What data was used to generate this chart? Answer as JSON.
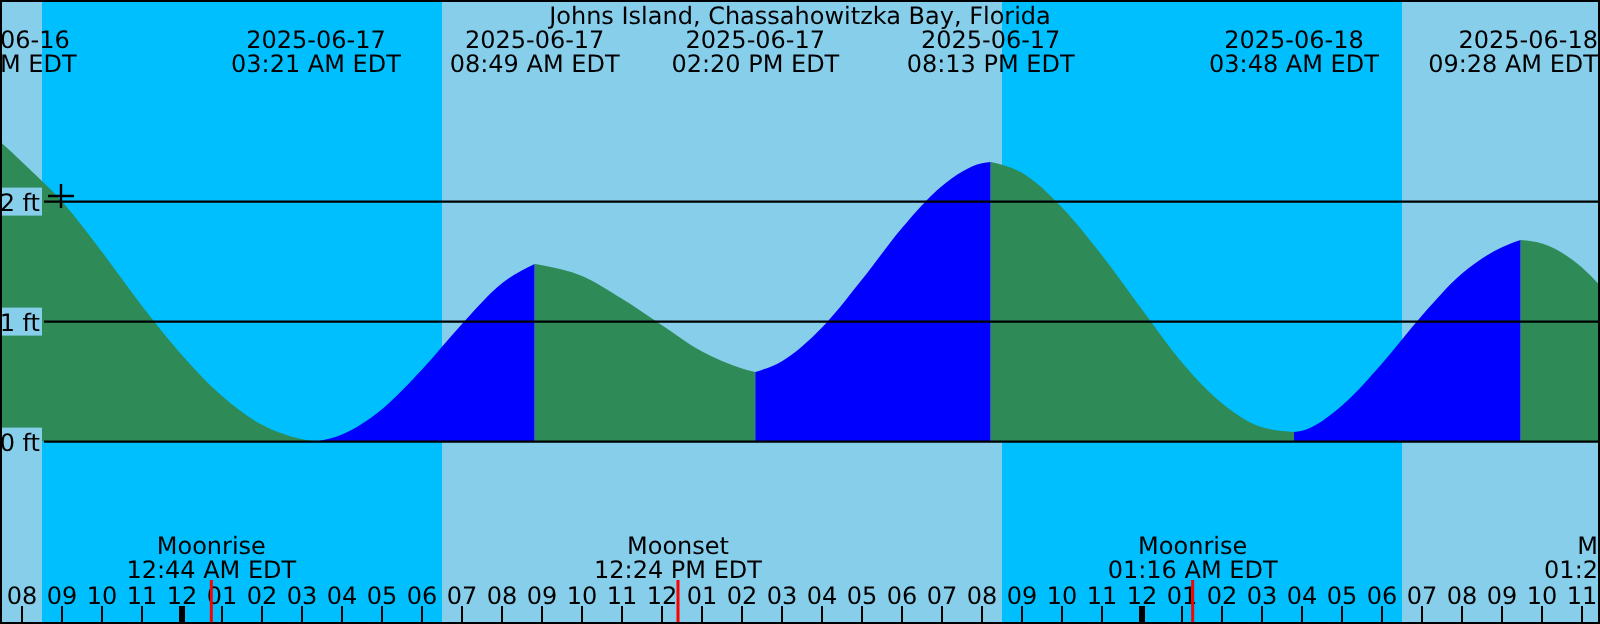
{
  "chart_data": {
    "type": "area",
    "title": "Johns Island, Chassahowitzka Bay, Florida",
    "xlim": [
      "2025-06-16T19:27",
      "2025-06-18T11:27"
    ],
    "ylim": [
      -1.52,
      3.68
    ],
    "yticks": [
      {
        "value": 0,
        "label": "0 ft"
      },
      {
        "value": 1,
        "label": "1 ft"
      },
      {
        "value": 2,
        "label": "2 ft"
      }
    ],
    "xticks": [
      {
        "value": "2025-06-16T20:00",
        "label": "08"
      },
      {
        "value": "2025-06-16T21:00",
        "label": "09"
      },
      {
        "value": "2025-06-16T22:00",
        "label": "10"
      },
      {
        "value": "2025-06-16T23:00",
        "label": "11"
      },
      {
        "value": "2025-06-17T00:00",
        "label": "12"
      },
      {
        "value": "2025-06-17T01:00",
        "label": "01"
      },
      {
        "value": "2025-06-17T02:00",
        "label": "02"
      },
      {
        "value": "2025-06-17T03:00",
        "label": "03"
      },
      {
        "value": "2025-06-17T04:00",
        "label": "04"
      },
      {
        "value": "2025-06-17T05:00",
        "label": "05"
      },
      {
        "value": "2025-06-17T06:00",
        "label": "06"
      },
      {
        "value": "2025-06-17T07:00",
        "label": "07"
      },
      {
        "value": "2025-06-17T08:00",
        "label": "08"
      },
      {
        "value": "2025-06-17T09:00",
        "label": "09"
      },
      {
        "value": "2025-06-17T10:00",
        "label": "10"
      },
      {
        "value": "2025-06-17T11:00",
        "label": "11"
      },
      {
        "value": "2025-06-17T12:00",
        "label": "12"
      },
      {
        "value": "2025-06-17T13:00",
        "label": "01"
      },
      {
        "value": "2025-06-17T14:00",
        "label": "02"
      },
      {
        "value": "2025-06-17T15:00",
        "label": "03"
      },
      {
        "value": "2025-06-17T16:00",
        "label": "04"
      },
      {
        "value": "2025-06-17T17:00",
        "label": "05"
      },
      {
        "value": "2025-06-17T18:00",
        "label": "06"
      },
      {
        "value": "2025-06-17T19:00",
        "label": "07"
      },
      {
        "value": "2025-06-17T20:00",
        "label": "08"
      },
      {
        "value": "2025-06-17T21:00",
        "label": "09"
      },
      {
        "value": "2025-06-17T22:00",
        "label": "10"
      },
      {
        "value": "2025-06-17T23:00",
        "label": "11"
      },
      {
        "value": "2025-06-18T00:00",
        "label": "12"
      },
      {
        "value": "2025-06-18T01:00",
        "label": "01"
      },
      {
        "value": "2025-06-18T02:00",
        "label": "02"
      },
      {
        "value": "2025-06-18T03:00",
        "label": "03"
      },
      {
        "value": "2025-06-18T04:00",
        "label": "04"
      },
      {
        "value": "2025-06-18T05:00",
        "label": "05"
      },
      {
        "value": "2025-06-18T06:00",
        "label": "06"
      },
      {
        "value": "2025-06-18T07:00",
        "label": "07"
      },
      {
        "value": "2025-06-18T08:00",
        "label": "08"
      },
      {
        "value": "2025-06-18T09:00",
        "label": "09"
      },
      {
        "value": "2025-06-18T10:00",
        "label": "10"
      },
      {
        "value": "2025-06-18T11:00",
        "label": "11"
      }
    ],
    "x2lim": [
      "2025-06-16T19:27",
      "2025-06-18T11:27"
    ],
    "x2ticks": [
      {
        "value": "2025-06-17T03:21",
        "label": "2025-06-17\n03:21 AM EDT"
      },
      {
        "value": "2025-06-17T08:49",
        "label": "2025-06-17\n08:49 AM EDT"
      },
      {
        "value": "2025-06-17T14:20",
        "label": "2025-06-17\n02:20 PM EDT"
      },
      {
        "value": "2025-06-17T20:13",
        "label": "2025-06-17\n08:13 PM EDT"
      },
      {
        "value": "2025-06-18T03:48",
        "label": "2025-06-18\n03:48 AM EDT"
      },
      {
        "value": "2025-06-18T09:28",
        "label": "2025-06-18\n09:28 AM EDT"
      }
    ],
    "grid": "y",
    "marker": "none",
    "bands": [
      {
        "axis": "x",
        "from": "2025-06-16T19:27",
        "to": "2025-06-16T20:30",
        "color": "#87ceeb"
      },
      {
        "axis": "x",
        "from": "2025-06-16T20:30",
        "to": "2025-06-17T06:30",
        "color": "#00bfff"
      },
      {
        "axis": "x",
        "from": "2025-06-17T06:30",
        "to": "2025-06-17T20:30",
        "color": "#87ceeb"
      },
      {
        "axis": "x",
        "from": "2025-06-17T20:30",
        "to": "2025-06-18T06:30",
        "color": "#00bfff"
      },
      {
        "axis": "x",
        "from": "2025-06-18T06:30",
        "to": "2025-06-18T11:27",
        "color": "#87ceeb"
      }
    ],
    "ref_lines": [
      {
        "axis": "x",
        "value": "2025-06-17T00:44",
        "label": "Moonrise\n12:44 AM EDT",
        "color": "#ff0000"
      },
      {
        "axis": "x",
        "value": "2025-06-17T12:24",
        "label": "Moonset\n12:24 PM EDT",
        "color": "#ff0000"
      },
      {
        "axis": "x",
        "value": "2025-06-18T01:16",
        "label": "Moonrise\n01:16 AM EDT",
        "color": "#ff0000"
      }
    ],
    "series": [
      {
        "color": "#2e8b57",
        "x": [
          "2025-06-16T19:27",
          "2025-06-16T20:00",
          "2025-06-16T21:00",
          "2025-06-16T22:00",
          "2025-06-16T23:00",
          "2025-06-17T00:00",
          "2025-06-17T01:00",
          "2025-06-17T02:00",
          "2025-06-17T03:00",
          "2025-06-17T03:21"
        ],
        "values": [
          2.5,
          2.33,
          2.0,
          1.58,
          1.13,
          0.72,
          0.38,
          0.14,
          0.02,
          0.0
        ]
      },
      {
        "color": "#0000ff",
        "x": [
          "2025-06-17T03:21",
          "2025-06-17T04:00",
          "2025-06-17T05:00",
          "2025-06-17T06:00",
          "2025-06-17T07:00",
          "2025-06-17T08:00",
          "2025-06-17T08:49"
        ],
        "values": [
          0.0,
          0.06,
          0.27,
          0.6,
          0.98,
          1.32,
          1.48
        ]
      },
      {
        "color": "#2e8b57",
        "x": [
          "2025-06-17T08:49",
          "2025-06-17T09:00",
          "2025-06-17T10:00",
          "2025-06-17T11:00",
          "2025-06-17T12:00",
          "2025-06-17T13:00",
          "2025-06-17T14:00",
          "2025-06-17T14:20"
        ],
        "values": [
          1.48,
          1.47,
          1.38,
          1.19,
          0.97,
          0.75,
          0.61,
          0.58
        ]
      },
      {
        "color": "#0000ff",
        "x": [
          "2025-06-17T14:20",
          "2025-06-17T15:00",
          "2025-06-17T16:00",
          "2025-06-17T17:00",
          "2025-06-17T18:00",
          "2025-06-17T19:00",
          "2025-06-17T20:00",
          "2025-06-17T20:13"
        ],
        "values": [
          0.58,
          0.67,
          0.95,
          1.35,
          1.78,
          2.13,
          2.32,
          2.33
        ]
      },
      {
        "color": "#2e8b57",
        "x": [
          "2025-06-17T20:13",
          "2025-06-17T21:00",
          "2025-06-17T22:00",
          "2025-06-17T23:00",
          "2025-06-18T00:00",
          "2025-06-18T01:00",
          "2025-06-18T02:00",
          "2025-06-18T03:00",
          "2025-06-18T03:48"
        ],
        "values": [
          2.33,
          2.24,
          1.95,
          1.55,
          1.1,
          0.66,
          0.32,
          0.12,
          0.08
        ]
      },
      {
        "color": "#0000ff",
        "x": [
          "2025-06-18T03:48",
          "2025-06-18T04:00",
          "2025-06-18T05:00",
          "2025-06-18T06:00",
          "2025-06-18T07:00",
          "2025-06-18T08:00",
          "2025-06-18T09:00",
          "2025-06-18T09:28"
        ],
        "values": [
          0.08,
          0.09,
          0.3,
          0.65,
          1.05,
          1.4,
          1.62,
          1.68
        ]
      },
      {
        "color": "#2e8b57",
        "x": [
          "2025-06-18T09:28",
          "2025-06-18T10:00",
          "2025-06-18T11:00",
          "2025-06-18T11:27"
        ],
        "values": [
          1.68,
          1.65,
          1.45,
          1.3
        ]
      }
    ],
    "annotations": [
      "06-16\nM EDT",
      "M\n01:2"
    ]
  }
}
